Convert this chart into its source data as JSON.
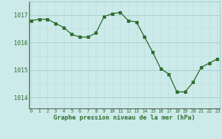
{
  "x": [
    0,
    1,
    2,
    3,
    4,
    5,
    6,
    7,
    8,
    9,
    10,
    11,
    12,
    13,
    14,
    15,
    16,
    17,
    18,
    19,
    20,
    21,
    22,
    23
  ],
  "y": [
    1016.8,
    1016.85,
    1016.85,
    1016.7,
    1016.55,
    1016.3,
    1016.2,
    1016.2,
    1016.35,
    1016.95,
    1017.05,
    1017.1,
    1016.8,
    1016.75,
    1016.2,
    1015.65,
    1015.05,
    1014.85,
    1014.2,
    1014.2,
    1014.55,
    1015.1,
    1015.25,
    1015.4
  ],
  "line_color": "#2d6e2d",
  "marker": "s",
  "marker_size": 2.5,
  "bg_color": "#cceaea",
  "grid_major_color": "#aacccc",
  "grid_minor_color": "#bbdddd",
  "axis_color": "#2d6e2d",
  "title": "Graphe pression niveau de la mer (hPa)",
  "ytick_fontsize": 6,
  "xtick_fontsize": 5,
  "title_fontsize": 6.5,
  "yticks": [
    1014,
    1015,
    1016,
    1017
  ],
  "xticks": [
    0,
    1,
    2,
    3,
    4,
    5,
    6,
    7,
    8,
    9,
    10,
    11,
    12,
    13,
    14,
    15,
    16,
    17,
    18,
    19,
    20,
    21,
    22,
    23
  ],
  "ylim": [
    1013.6,
    1017.5
  ],
  "xlim": [
    -0.3,
    23.3
  ]
}
